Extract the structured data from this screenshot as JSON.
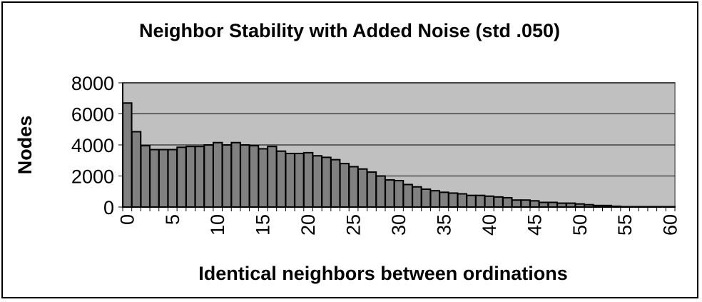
{
  "chart_data": {
    "type": "bar",
    "title": "Neighbor Stability with Added Noise (std .050)",
    "xlabel": "Identical neighbors between ordinations",
    "ylabel": "Nodes",
    "ylim": [
      0,
      8000
    ],
    "yticks": [
      0,
      2000,
      4000,
      6000,
      8000
    ],
    "xticks": [
      0,
      5,
      10,
      15,
      20,
      25,
      30,
      35,
      40,
      45,
      50,
      55,
      60
    ],
    "grid": true,
    "legend": "none",
    "x": [
      0,
      1,
      2,
      3,
      4,
      5,
      6,
      7,
      8,
      9,
      10,
      11,
      12,
      13,
      14,
      15,
      16,
      17,
      18,
      19,
      20,
      21,
      22,
      23,
      24,
      25,
      26,
      27,
      28,
      29,
      30,
      31,
      32,
      33,
      34,
      35,
      36,
      37,
      38,
      39,
      40,
      41,
      42,
      43,
      44,
      45,
      46,
      47,
      48,
      49,
      50,
      51,
      52,
      53,
      54,
      55,
      56,
      57,
      58,
      59,
      60
    ],
    "values": [
      6700,
      4850,
      3950,
      3700,
      3700,
      3700,
      3850,
      3900,
      3900,
      4000,
      4150,
      4000,
      4150,
      4000,
      3950,
      3750,
      3900,
      3600,
      3450,
      3450,
      3500,
      3300,
      3200,
      3050,
      2800,
      2600,
      2450,
      2250,
      2000,
      1750,
      1700,
      1450,
      1300,
      1150,
      1050,
      950,
      900,
      850,
      750,
      750,
      700,
      650,
      600,
      450,
      450,
      400,
      300,
      300,
      250,
      250,
      200,
      150,
      100,
      100,
      50,
      20,
      10,
      5,
      5,
      5,
      5
    ],
    "colors": {
      "plot_background": "#c0c0c0",
      "bar_fill": "#808080",
      "bar_stroke": "#000000",
      "gridline": "#000000"
    }
  }
}
